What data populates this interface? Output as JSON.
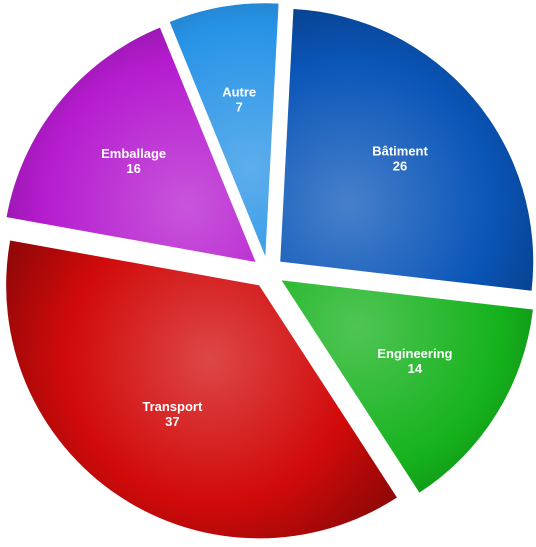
{
  "chart_data": {
    "type": "pie",
    "exploded": true,
    "legend": "none",
    "slices": [
      {
        "label": "Bâtiment",
        "value": 26,
        "color": "#0a55b8"
      },
      {
        "label": "Engineering",
        "value": 14,
        "color": "#15b21c"
      },
      {
        "label": "Transport",
        "value": 37,
        "color": "#d10a0a"
      },
      {
        "label": "Emballage",
        "value": 16,
        "color": "#b51ccf"
      },
      {
        "label": "Autre",
        "value": 7,
        "color": "#2793e6"
      }
    ]
  }
}
